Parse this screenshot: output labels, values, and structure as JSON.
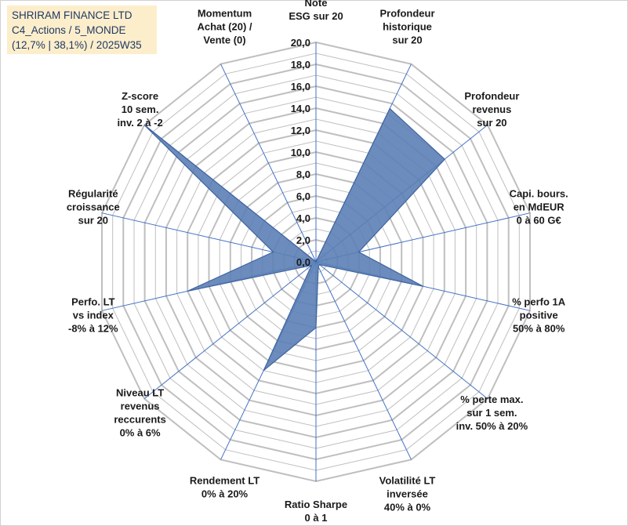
{
  "title_lines": [
    "SHRIRAM FINANCE LTD",
    "C4_Actions / 5_MONDE",
    "(12,7% | 38,1%) / 2025W35"
  ],
  "chart_data": {
    "type": "radar",
    "rmax": 20,
    "rings": 20,
    "tick_labels": [
      "0,0",
      "2,0",
      "4,0",
      "6,0",
      "8,0",
      "10,0",
      "12,0",
      "14,0",
      "16,0",
      "18,0",
      "20,0"
    ],
    "axes": [
      {
        "label": [
          "Note",
          "ESG sur 20"
        ]
      },
      {
        "label": [
          "Profondeur",
          "historique",
          "sur 20"
        ]
      },
      {
        "label": [
          "Profondeur",
          "revenus",
          "sur 20"
        ]
      },
      {
        "label": [
          "Capi. bours.",
          "en MdEUR",
          "0 à 60 G€"
        ]
      },
      {
        "label": [
          "% perfo 1A",
          "positive",
          "50% à 80%"
        ]
      },
      {
        "label": [
          "% perte max.",
          "sur 1 sem.",
          "inv. 50% à 20%"
        ]
      },
      {
        "label": [
          "Volatilité LT",
          "inversée",
          "40% à 0%"
        ]
      },
      {
        "label": [
          "Ratio Sharpe",
          "0 à 1"
        ]
      },
      {
        "label": [
          "Rendement LT",
          "0% à 20%"
        ]
      },
      {
        "label": [
          "Niveau LT",
          "revenus",
          "reccurents",
          "0% à 6%"
        ]
      },
      {
        "label": [
          "Perfo. LT",
          "vs index",
          "-8% à 12%"
        ]
      },
      {
        "label": [
          "Régularité",
          "croissance",
          "sur 20"
        ]
      },
      {
        "label": [
          "Z-score",
          "10 sem.",
          "inv. 2 à -2"
        ]
      },
      {
        "label": [
          "Momentum",
          "Achat (20) /",
          "Vente (0)"
        ]
      }
    ],
    "values": [
      0.0,
      15.5,
      15.0,
      4.0,
      10.0,
      0.4,
      0.5,
      6.0,
      11.0,
      0.5,
      12.0,
      4.0,
      20.0,
      0.0
    ],
    "colors": {
      "fill": "#5b7fb5",
      "stroke": "#3f63a0",
      "grid": "#bfbfbf",
      "spoke": "#4472c4"
    }
  }
}
